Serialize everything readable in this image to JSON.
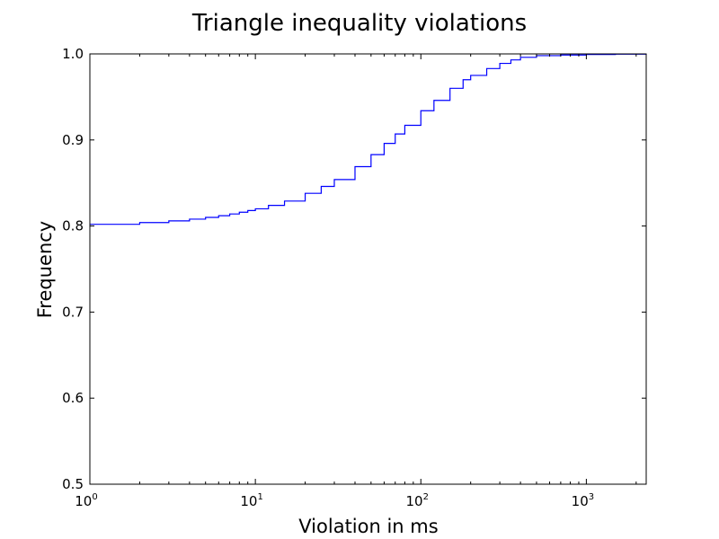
{
  "chart_data": {
    "type": "line",
    "title": "Triangle inequality violations",
    "xlabel": "Violation in ms",
    "ylabel": "Frequency",
    "xscale": "log",
    "xlim": [
      1,
      2300
    ],
    "ylim": [
      0.5,
      1.0
    ],
    "grid": false,
    "line_color": "#0000ff",
    "x_ticks": [
      {
        "value": 1,
        "base": "10",
        "exp": "0"
      },
      {
        "value": 10,
        "base": "10",
        "exp": "1"
      },
      {
        "value": 100,
        "base": "10",
        "exp": "2"
      },
      {
        "value": 1000,
        "base": "10",
        "exp": "3"
      }
    ],
    "y_ticks": [
      {
        "value": 0.5,
        "label": "0.5"
      },
      {
        "value": 0.6,
        "label": "0.6"
      },
      {
        "value": 0.7,
        "label": "0.7"
      },
      {
        "value": 0.8,
        "label": "0.8"
      },
      {
        "value": 0.9,
        "label": "0.9"
      },
      {
        "value": 1.0,
        "label": "1.0"
      }
    ],
    "series": [
      {
        "x": [
          1,
          2,
          3,
          4,
          5,
          6,
          7,
          8,
          9,
          10,
          12,
          15,
          20,
          25,
          30,
          40,
          50,
          60,
          70,
          80,
          100,
          120,
          150,
          180,
          200,
          250,
          300,
          350,
          400,
          500,
          700,
          1000,
          1500,
          2300
        ],
        "y": [
          0.802,
          0.804,
          0.806,
          0.808,
          0.81,
          0.812,
          0.814,
          0.816,
          0.818,
          0.82,
          0.824,
          0.829,
          0.838,
          0.846,
          0.854,
          0.869,
          0.883,
          0.896,
          0.907,
          0.917,
          0.934,
          0.946,
          0.96,
          0.97,
          0.975,
          0.983,
          0.989,
          0.993,
          0.996,
          0.998,
          0.9987,
          0.9993,
          0.9997,
          1.0
        ]
      }
    ]
  }
}
